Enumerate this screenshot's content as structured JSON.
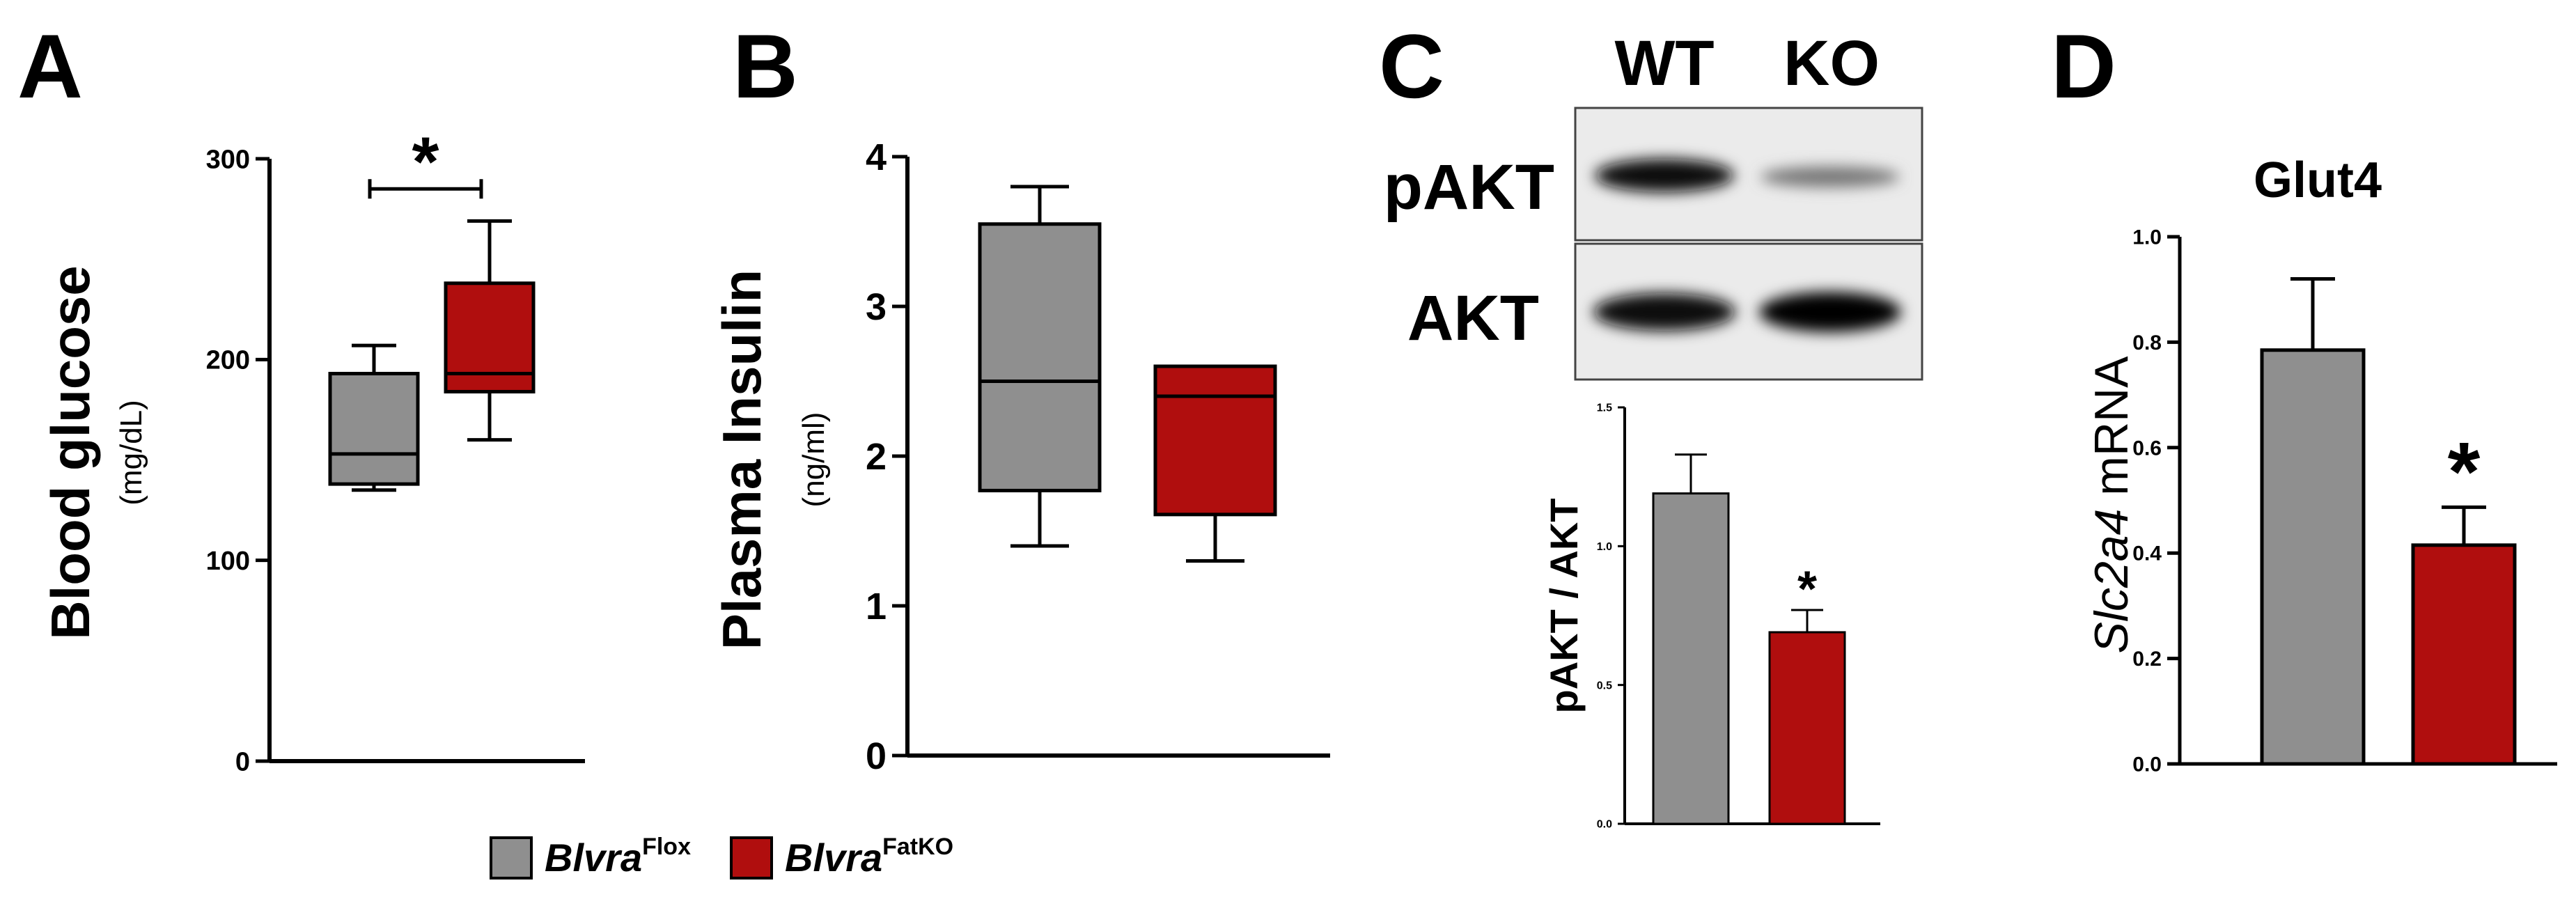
{
  "colors": {
    "flox": "#8f8f8f",
    "fatko": "#b00e0e",
    "axis": "#000000"
  },
  "chart_data": [
    {
      "panel": "A",
      "type": "box",
      "ylabel_main": "Blood glucose",
      "ylabel_unit": "(mg/dL)",
      "yticks": [
        0,
        100,
        200,
        300
      ],
      "ylim": [
        0,
        300
      ],
      "boxes": [
        {
          "group": "Flox",
          "min": 135,
          "q1": 138,
          "median": 153,
          "q3": 193,
          "max": 207
        },
        {
          "group": "FatKO",
          "min": 160,
          "q1": 184,
          "median": 193,
          "q3": 238,
          "max": 269
        }
      ],
      "significance": {
        "label": "*",
        "y": 285
      }
    },
    {
      "panel": "B",
      "type": "box",
      "ylabel_main": "Plasma Insulin",
      "ylabel_unit": "(ng/ml)",
      "yticks": [
        0,
        1,
        2,
        3,
        4
      ],
      "ylim": [
        0,
        4
      ],
      "boxes": [
        {
          "group": "Flox",
          "min": 1.4,
          "q1": 1.77,
          "median": 2.5,
          "q3": 3.55,
          "max": 3.8
        },
        {
          "group": "FatKO",
          "min": 1.3,
          "q1": 1.61,
          "median": 2.4,
          "q3": 2.6,
          "max": 2.6
        }
      ]
    },
    {
      "panel": "C",
      "type": "bar",
      "blot": {
        "columns": [
          "WT",
          "KO"
        ],
        "rows": [
          "pAKT",
          "AKT"
        ]
      },
      "ylabel": "pAKT / AKT",
      "yticks": [
        "0.0",
        "0.5",
        "1.0",
        "1.5"
      ],
      "ylim": [
        0,
        1.5
      ],
      "values": [
        1.19,
        0.69
      ],
      "errors": [
        0.14,
        0.08
      ],
      "significance": "*"
    },
    {
      "panel": "D",
      "type": "bar",
      "title": "Glut4",
      "ylabel_italic": "Slc2a4",
      "ylabel_rest": " mRNA",
      "yticks": [
        "0.0",
        "0.2",
        "0.4",
        "0.6",
        "0.8",
        "1.0"
      ],
      "ylim": [
        0,
        1.0
      ],
      "values": [
        0.785,
        0.415
      ],
      "errors": [
        0.135,
        0.072
      ],
      "significance": "*"
    }
  ],
  "legend": [
    {
      "gene": "Blvra",
      "sup": "Flox"
    },
    {
      "gene": "Blvra",
      "sup": "FatKO"
    }
  ]
}
